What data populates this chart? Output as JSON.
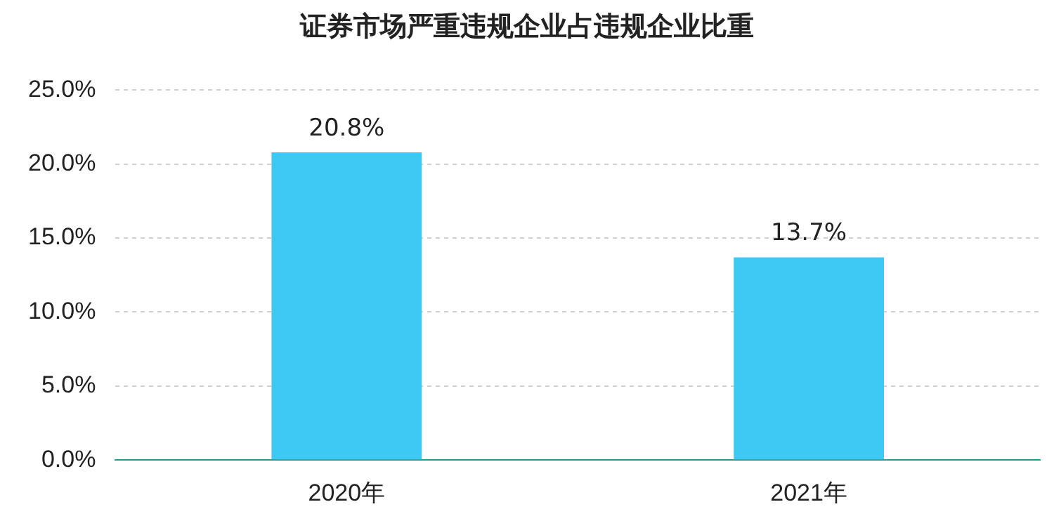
{
  "chart_data": {
    "type": "bar",
    "title": "证券市场严重违规企业占违规企业比重",
    "categories": [
      "2020年",
      "2021年"
    ],
    "values": [
      20.8,
      13.7
    ],
    "value_labels": [
      "20.8%",
      "13.7%"
    ],
    "color": "#3ec9f5",
    "ylim": [
      0,
      25
    ],
    "yticks": [
      {
        "value": 0,
        "label": "0.0%"
      },
      {
        "value": 5,
        "label": "5.0%"
      },
      {
        "value": 10,
        "label": "10.0%"
      },
      {
        "value": 15,
        "label": "15.0%"
      },
      {
        "value": 20,
        "label": "20.0%"
      },
      {
        "value": 25,
        "label": "25.0%"
      }
    ],
    "grid": "y",
    "legend": false
  }
}
